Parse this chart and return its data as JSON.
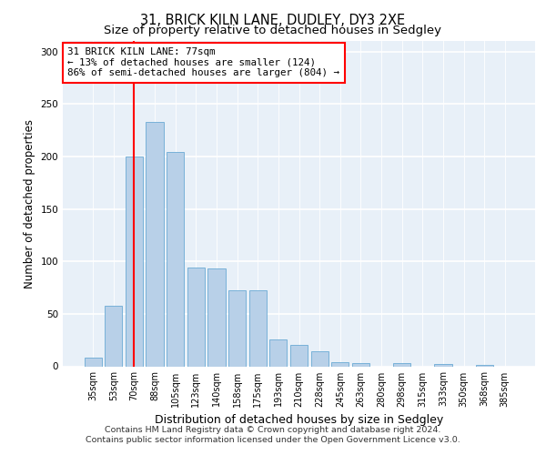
{
  "title_line1": "31, BRICK KILN LANE, DUDLEY, DY3 2XE",
  "title_line2": "Size of property relative to detached houses in Sedgley",
  "xlabel": "Distribution of detached houses by size in Sedgley",
  "ylabel": "Number of detached properties",
  "bar_labels": [
    "35sqm",
    "53sqm",
    "70sqm",
    "88sqm",
    "105sqm",
    "123sqm",
    "140sqm",
    "158sqm",
    "175sqm",
    "193sqm",
    "210sqm",
    "228sqm",
    "245sqm",
    "263sqm",
    "280sqm",
    "298sqm",
    "315sqm",
    "333sqm",
    "350sqm",
    "368sqm",
    "385sqm"
  ],
  "bar_values": [
    8,
    58,
    200,
    233,
    204,
    94,
    93,
    72,
    72,
    26,
    20,
    14,
    4,
    3,
    0,
    3,
    0,
    2,
    0,
    1,
    0
  ],
  "bar_color": "#b8d0e8",
  "bar_edge_color": "#6aaad4",
  "vline_x": 2.0,
  "vline_color": "red",
  "annotation_text": "31 BRICK KILN LANE: 77sqm\n← 13% of detached houses are smaller (124)\n86% of semi-detached houses are larger (804) →",
  "annotation_box_color": "white",
  "annotation_box_edge": "red",
  "ylim": [
    0,
    310
  ],
  "yticks": [
    0,
    50,
    100,
    150,
    200,
    250,
    300
  ],
  "footer_line1": "Contains HM Land Registry data © Crown copyright and database right 2024.",
  "footer_line2": "Contains public sector information licensed under the Open Government Licence v3.0.",
  "bg_color": "#e8f0f8",
  "grid_color": "white",
  "title_fontsize": 10.5,
  "subtitle_fontsize": 9.5,
  "axis_label_fontsize": 8.5,
  "tick_fontsize": 7,
  "footer_fontsize": 6.8,
  "ann_fontsize": 7.8
}
